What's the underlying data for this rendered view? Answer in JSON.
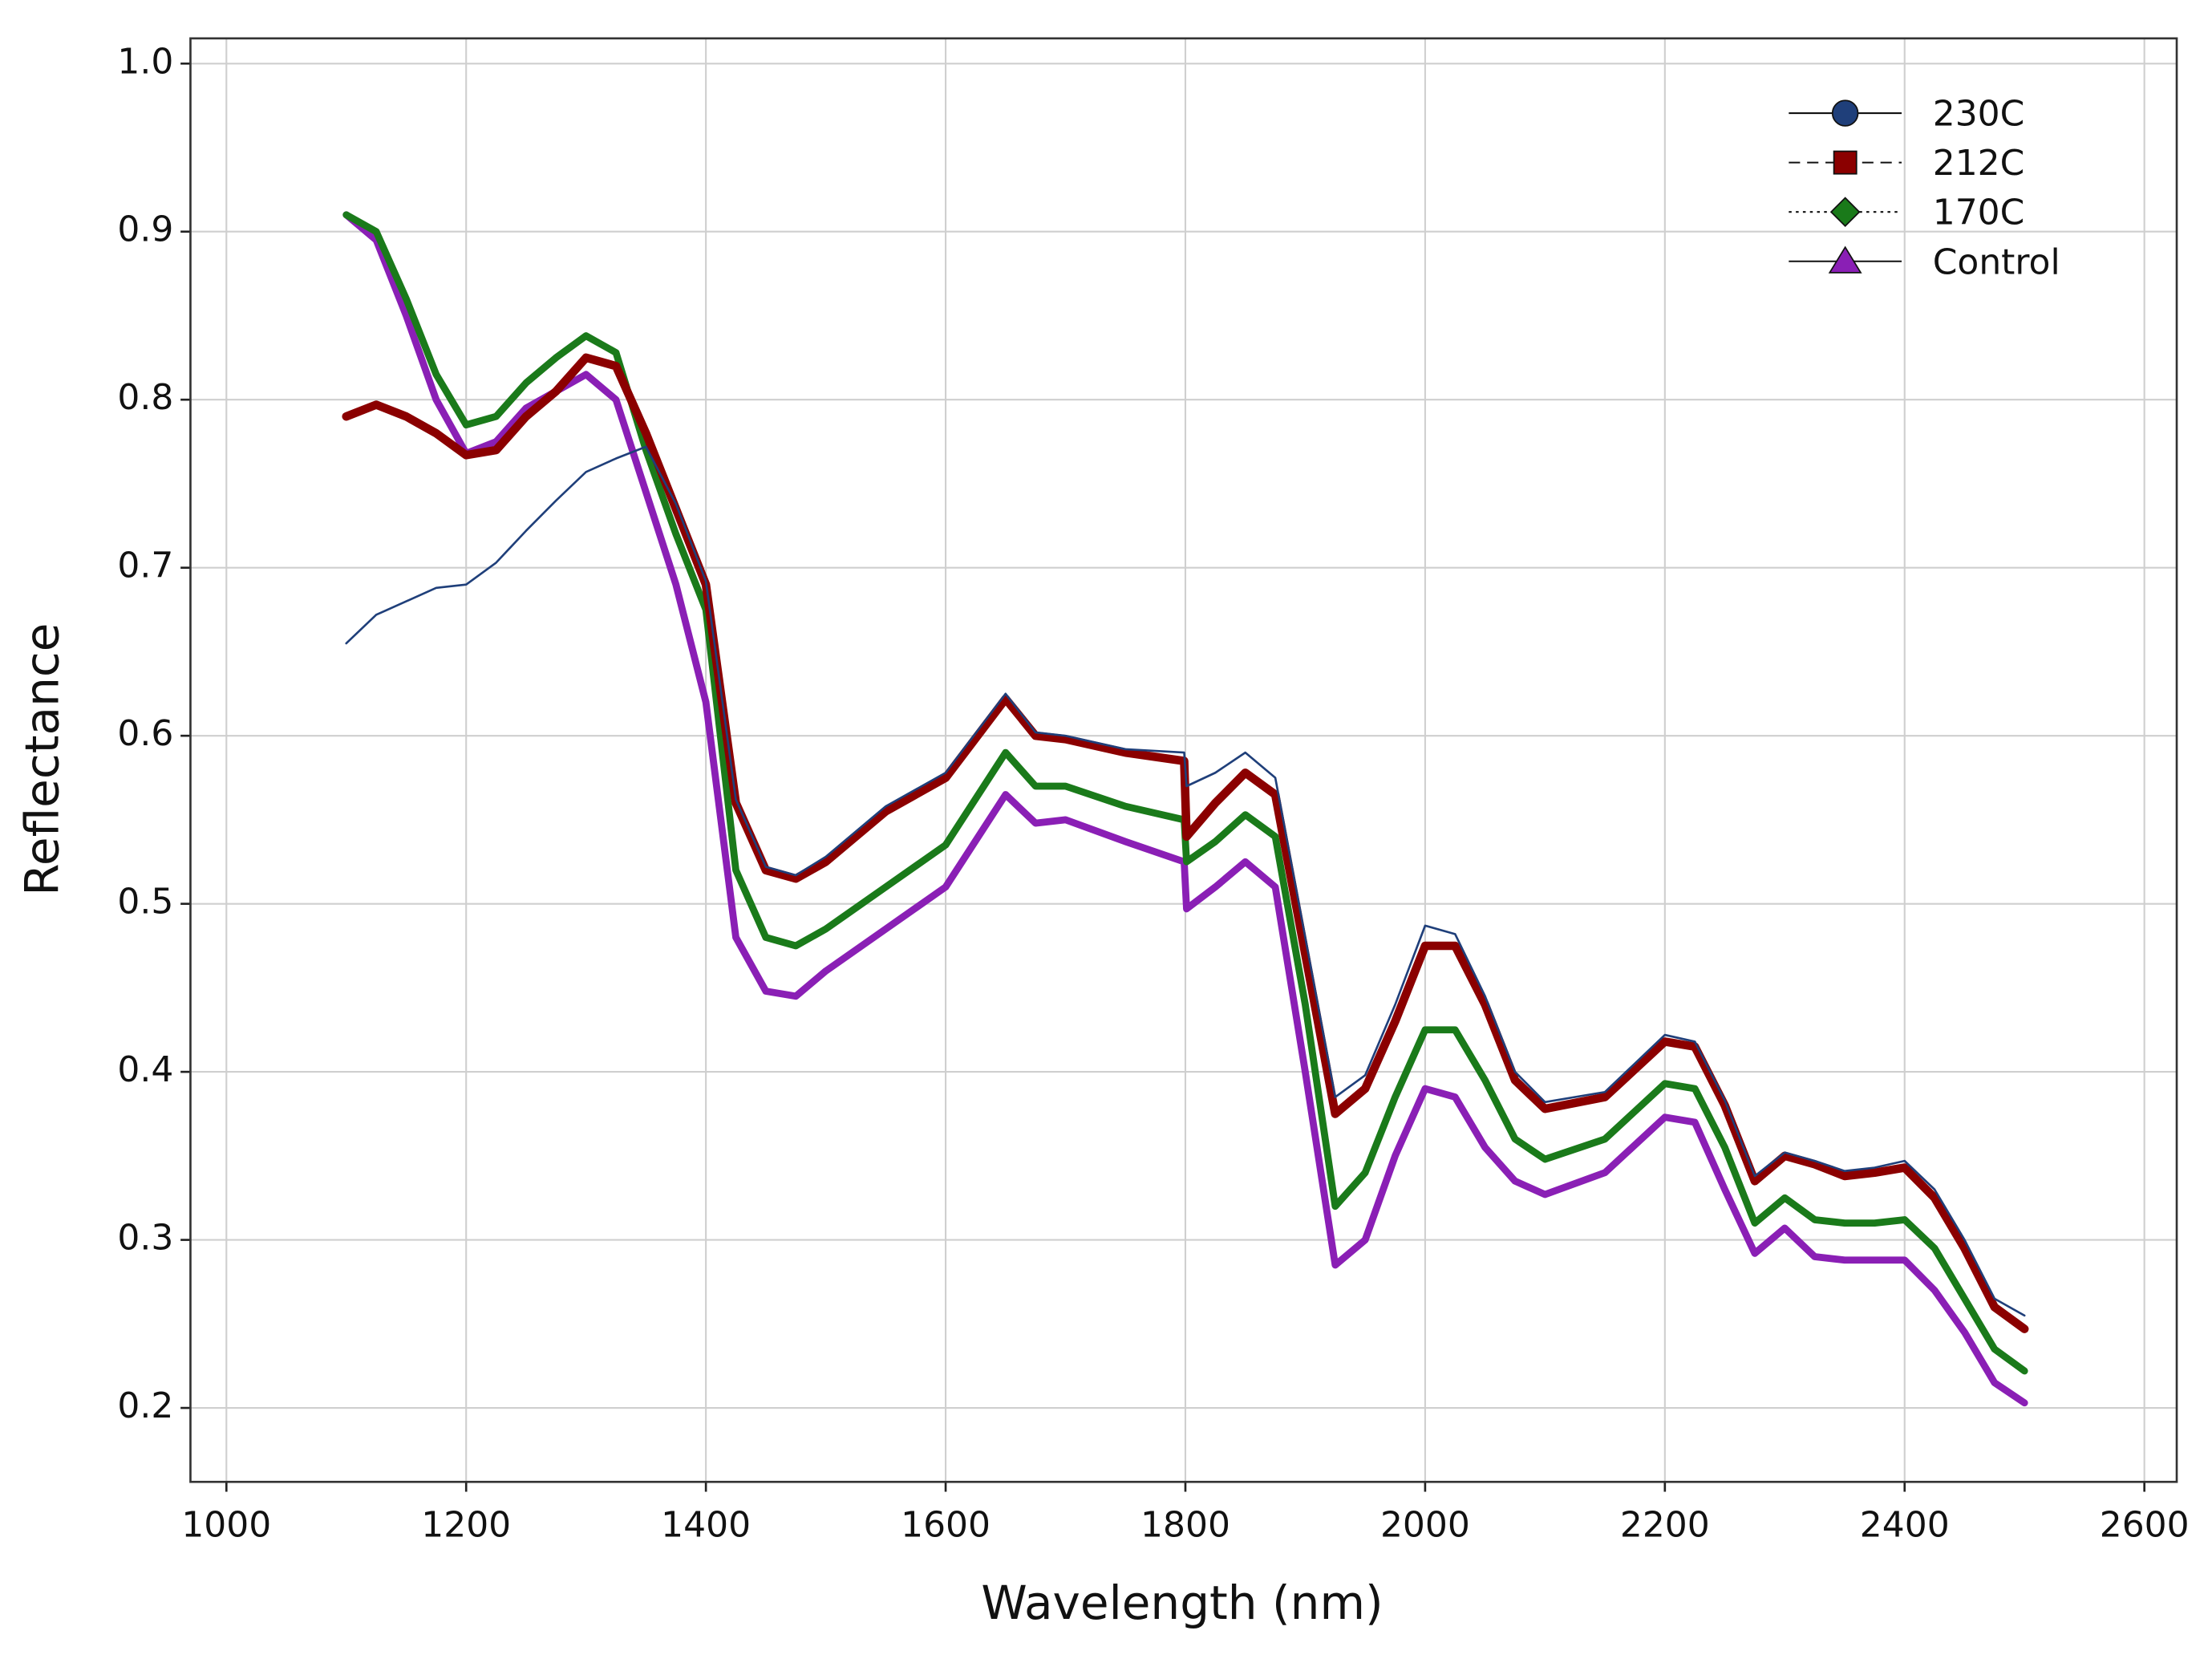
{
  "chart_data": {
    "type": "line",
    "xlabel": "Wavelength (nm)",
    "ylabel": "Reflectance",
    "x": [
      1100,
      1125,
      1150,
      1175,
      1200,
      1225,
      1250,
      1275,
      1300,
      1325,
      1350,
      1375,
      1400,
      1425,
      1450,
      1475,
      1500,
      1550,
      1600,
      1650,
      1675,
      1700,
      1750,
      1799,
      1801,
      1825,
      1850,
      1875,
      1900,
      1925,
      1950,
      1975,
      2000,
      2025,
      2050,
      2075,
      2100,
      2150,
      2200,
      2225,
      2250,
      2275,
      2300,
      2325,
      2350,
      2375,
      2400,
      2425,
      2450,
      2475,
      2500
    ],
    "series": [
      {
        "name": "Control",
        "color": "#8a1fb5",
        "width": 5,
        "dash": "none",
        "marker": "triangle",
        "values": [
          0.91,
          0.895,
          0.85,
          0.8,
          0.768,
          0.775,
          0.795,
          0.805,
          0.815,
          0.8,
          0.745,
          0.69,
          0.62,
          0.48,
          0.448,
          0.445,
          0.46,
          0.485,
          0.51,
          0.565,
          0.548,
          0.55,
          0.537,
          0.525,
          0.497,
          0.51,
          0.525,
          0.51,
          0.4,
          0.285,
          0.3,
          0.35,
          0.39,
          0.385,
          0.355,
          0.335,
          0.327,
          0.34,
          0.373,
          0.37,
          0.33,
          0.292,
          0.307,
          0.29,
          0.288,
          0.288,
          0.288,
          0.27,
          0.245,
          0.215,
          0.203
        ]
      },
      {
        "name": "170C",
        "color": "#1a7a1a",
        "width": 5,
        "dash": "2 3",
        "marker": "diamond",
        "values": [
          0.91,
          0.9,
          0.86,
          0.815,
          0.785,
          0.79,
          0.81,
          0.825,
          0.838,
          0.828,
          0.77,
          0.72,
          0.675,
          0.52,
          0.48,
          0.475,
          0.485,
          0.51,
          0.535,
          0.59,
          0.57,
          0.57,
          0.558,
          0.55,
          0.525,
          0.537,
          0.553,
          0.54,
          0.44,
          0.32,
          0.34,
          0.385,
          0.425,
          0.425,
          0.395,
          0.36,
          0.348,
          0.36,
          0.393,
          0.39,
          0.355,
          0.31,
          0.325,
          0.312,
          0.31,
          0.31,
          0.312,
          0.295,
          0.265,
          0.235,
          0.222
        ]
      },
      {
        "name": "212C",
        "color": "#8b0000",
        "width": 6,
        "dash": "8 5",
        "marker": "square",
        "values": [
          0.79,
          0.797,
          0.79,
          0.78,
          0.767,
          0.77,
          0.79,
          0.805,
          0.825,
          0.82,
          0.78,
          0.735,
          0.69,
          0.56,
          0.52,
          0.515,
          0.525,
          0.555,
          0.575,
          0.622,
          0.6,
          0.598,
          0.59,
          0.585,
          0.54,
          0.56,
          0.578,
          0.565,
          0.47,
          0.375,
          0.39,
          0.43,
          0.475,
          0.475,
          0.44,
          0.395,
          0.378,
          0.385,
          0.418,
          0.415,
          0.38,
          0.335,
          0.35,
          0.345,
          0.338,
          0.34,
          0.343,
          0.325,
          0.295,
          0.26,
          0.247
        ]
      },
      {
        "name": "230C",
        "color": "#1f3f7a",
        "width": 1.5,
        "dash": "none",
        "marker": "circle",
        "values": [
          0.655,
          0.672,
          0.68,
          0.688,
          0.69,
          0.703,
          0.722,
          0.74,
          0.757,
          0.765,
          0.772,
          0.738,
          0.692,
          0.562,
          0.522,
          0.517,
          0.528,
          0.558,
          0.578,
          0.625,
          0.602,
          0.6,
          0.592,
          0.59,
          0.57,
          0.578,
          0.59,
          0.575,
          0.48,
          0.385,
          0.398,
          0.44,
          0.487,
          0.482,
          0.445,
          0.4,
          0.382,
          0.388,
          0.422,
          0.418,
          0.383,
          0.338,
          0.352,
          0.347,
          0.341,
          0.343,
          0.347,
          0.33,
          0.3,
          0.265,
          0.255
        ]
      }
    ],
    "xlim": [
      970,
      2627
    ],
    "ylim": [
      0.156,
      1.015
    ],
    "xticks": [
      1000,
      1200,
      1400,
      1600,
      1800,
      2000,
      2200,
      2400,
      2600
    ],
    "yticks": [
      0.2,
      0.3,
      0.4,
      0.5,
      0.6,
      0.7,
      0.8,
      0.9,
      {
        "value": 1.0,
        "label": "1.0"
      }
    ],
    "grid": true,
    "legend": "upper right"
  }
}
